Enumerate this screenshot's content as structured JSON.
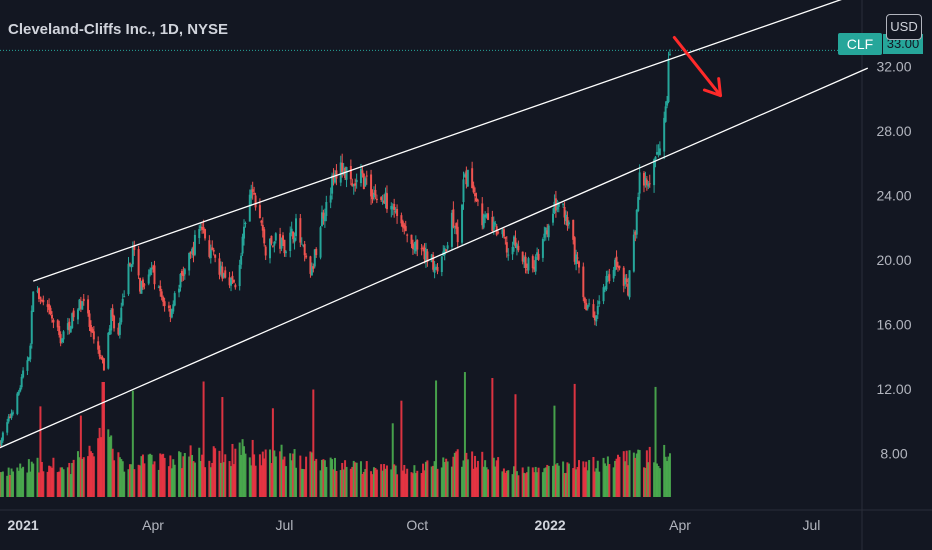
{
  "header": {
    "title": "Cleveland-Cliffs Inc., 1D, NYSE",
    "currency": "USD",
    "ticker": "CLF",
    "last_price_label": "33.00"
  },
  "colors": {
    "background": "#131722",
    "up": "#26a69a",
    "down": "#ef5350",
    "volume_up": "#4caf50",
    "volume_down": "#f23645",
    "trendline": "#ffffff",
    "arrow": "#ff2a2a",
    "axis_text": "#b2b5be",
    "price_line": "#26a69a"
  },
  "chart_data": {
    "type": "candlestick",
    "title": "Cleveland-Cliffs Inc., 1D, NYSE",
    "x_tick_labels": [
      "2021",
      "Apr",
      "Jul",
      "Oct",
      "2022",
      "Apr",
      "Jul"
    ],
    "y_tick_labels": [
      "8.00",
      "12.00",
      "16.00",
      "20.00",
      "24.00",
      "28.00",
      "32.00"
    ],
    "y_ticks": [
      8,
      12,
      16,
      20,
      24,
      28,
      32
    ],
    "ylim": [
      4.5,
      36
    ],
    "x_range": [
      "2020-12-16",
      "2022-08-05"
    ],
    "last_price": 33.0,
    "price_path": [
      [
        "2020-12-16",
        8.7
      ],
      [
        "2020-12-28",
        11.5
      ],
      [
        "2021-01-06",
        14.6
      ],
      [
        "2021-01-08",
        18.5
      ],
      [
        "2021-01-14",
        17.3
      ],
      [
        "2021-01-22",
        16.2
      ],
      [
        "2021-01-27",
        15.1
      ],
      [
        "2021-02-05",
        16.5
      ],
      [
        "2021-02-12",
        17.7
      ],
      [
        "2021-02-17",
        15.4
      ],
      [
        "2021-02-26",
        13.3
      ],
      [
        "2021-03-03",
        16.7
      ],
      [
        "2021-03-08",
        15.3
      ],
      [
        "2021-03-12",
        18.1
      ],
      [
        "2021-03-18",
        20.6
      ],
      [
        "2021-03-23",
        18.4
      ],
      [
        "2021-03-30",
        19.6
      ],
      [
        "2021-04-06",
        17.8
      ],
      [
        "2021-04-13",
        16.8
      ],
      [
        "2021-04-20",
        18.8
      ],
      [
        "2021-04-27",
        20.2
      ],
      [
        "2021-05-04",
        22.3
      ],
      [
        "2021-05-10",
        20.6
      ],
      [
        "2021-05-17",
        19.3
      ],
      [
        "2021-05-24",
        18.9
      ],
      [
        "2021-05-28",
        18.3
      ],
      [
        "2021-06-03",
        21.6
      ],
      [
        "2021-06-08",
        24.3
      ],
      [
        "2021-06-14",
        22.7
      ],
      [
        "2021-06-18",
        20.6
      ],
      [
        "2021-06-25",
        21.2
      ],
      [
        "2021-07-02",
        20.9
      ],
      [
        "2021-07-09",
        22.1
      ],
      [
        "2021-07-16",
        19.8
      ],
      [
        "2021-07-20",
        19.2
      ],
      [
        "2021-07-27",
        22.7
      ],
      [
        "2021-08-03",
        24.8
      ],
      [
        "2021-08-10",
        25.8
      ],
      [
        "2021-08-17",
        24.3
      ],
      [
        "2021-08-23",
        25.2
      ],
      [
        "2021-08-31",
        24.2
      ],
      [
        "2021-09-07",
        23.6
      ],
      [
        "2021-09-13",
        23.9
      ],
      [
        "2021-09-20",
        22.1
      ],
      [
        "2021-09-27",
        20.9
      ],
      [
        "2021-10-04",
        20.4
      ],
      [
        "2021-10-11",
        20.0
      ],
      [
        "2021-10-15",
        19.6
      ],
      [
        "2021-10-19",
        20.1
      ],
      [
        "2021-10-25",
        22.6
      ],
      [
        "2021-10-29",
        21.3
      ],
      [
        "2021-11-03",
        25.2
      ],
      [
        "2021-11-09",
        24.6
      ],
      [
        "2021-11-15",
        22.6
      ],
      [
        "2021-11-22",
        22.1
      ],
      [
        "2021-11-30",
        21.3
      ],
      [
        "2021-12-03",
        20.4
      ],
      [
        "2021-12-08",
        21.1
      ],
      [
        "2021-12-13",
        19.9
      ],
      [
        "2021-12-20",
        19.5
      ],
      [
        "2021-12-27",
        21.0
      ],
      [
        "2022-01-05",
        23.4
      ],
      [
        "2022-01-10",
        23.0
      ],
      [
        "2022-01-14",
        21.8
      ],
      [
        "2022-01-20",
        19.7
      ],
      [
        "2022-01-25",
        17.4
      ],
      [
        "2022-02-01",
        16.4
      ],
      [
        "2022-02-07",
        18.4
      ],
      [
        "2022-02-14",
        19.7
      ],
      [
        "2022-02-18",
        19.4
      ],
      [
        "2022-02-24",
        18.2
      ],
      [
        "2022-03-01",
        22.1
      ],
      [
        "2022-03-04",
        25.4
      ],
      [
        "2022-03-09",
        24.4
      ],
      [
        "2022-03-14",
        25.7
      ],
      [
        "2022-03-18",
        27.4
      ],
      [
        "2022-03-23",
        30.6
      ],
      [
        "2022-03-25",
        33.0
      ]
    ],
    "volume_profile": [
      [
        "2020-12-16",
        0.2
      ],
      [
        "2021-01-15",
        0.45
      ],
      [
        "2021-02-01",
        0.3
      ],
      [
        "2021-02-26",
        1.0
      ],
      [
        "2021-03-10",
        0.4
      ],
      [
        "2021-04-15",
        0.55
      ],
      [
        "2021-06-08",
        0.7
      ],
      [
        "2021-07-10",
        0.55
      ],
      [
        "2021-08-20",
        0.35
      ],
      [
        "2021-10-01",
        0.3
      ],
      [
        "2021-11-03",
        0.6
      ],
      [
        "2021-12-15",
        0.25
      ],
      [
        "2022-01-28",
        0.4
      ],
      [
        "2022-03-01",
        0.55
      ],
      [
        "2022-03-25",
        0.6
      ]
    ],
    "annotations": {
      "channel_upper": [
        [
          "2021-01-08",
          18.7
        ],
        [
          "2022-08-05",
          36.6
        ]
      ],
      "channel_lower": [
        [
          "2020-12-14",
          8.3
        ],
        [
          "2022-08-09",
          31.9
        ]
      ],
      "arrow": [
        [
          "2022-03-28",
          33.8
        ],
        [
          "2022-04-29",
          30.2
        ]
      ]
    }
  }
}
